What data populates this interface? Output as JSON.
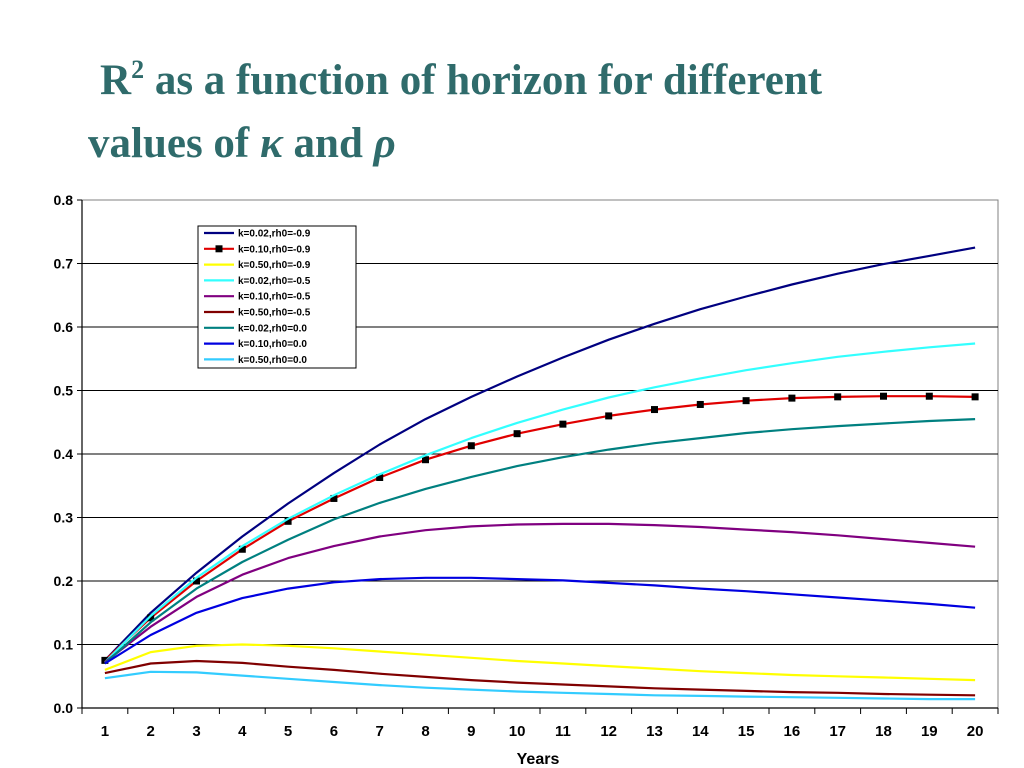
{
  "title": {
    "part1": "R",
    "sup": "2",
    "part2": " as a function of horizon for different",
    "part3": "values of ",
    "kappa": "κ",
    "part4": " and ",
    "rho": "ρ"
  },
  "chart_data": {
    "type": "line",
    "xlabel": "Years",
    "ylabel": "",
    "x": [
      1,
      2,
      3,
      4,
      5,
      6,
      7,
      8,
      9,
      10,
      11,
      12,
      13,
      14,
      15,
      16,
      17,
      18,
      19,
      20
    ],
    "xlim": [
      0.5,
      20.5
    ],
    "ylim": [
      0,
      0.8
    ],
    "yticks": [
      "0.0",
      "0.1",
      "0.2",
      "0.3",
      "0.4",
      "0.5",
      "0.6",
      "0.7",
      "0.8"
    ],
    "grid": true,
    "legend_position": "top-left",
    "series": [
      {
        "name": "k=0.02,rh0=-0.9",
        "color": "#000080",
        "marker": "none",
        "values": [
          0.075,
          0.15,
          0.213,
          0.27,
          0.322,
          0.37,
          0.415,
          0.455,
          0.49,
          0.522,
          0.552,
          0.58,
          0.605,
          0.628,
          0.648,
          0.667,
          0.684,
          0.699,
          0.712,
          0.725
        ]
      },
      {
        "name": "k=0.10,rh0=-0.9",
        "color": "#e00000",
        "marker": "square",
        "values": [
          0.075,
          0.142,
          0.2,
          0.25,
          0.294,
          0.33,
          0.363,
          0.391,
          0.413,
          0.432,
          0.447,
          0.46,
          0.47,
          0.478,
          0.484,
          0.488,
          0.49,
          0.491,
          0.491,
          0.49
        ]
      },
      {
        "name": "k=0.50,rh0=-0.9",
        "color": "#ffff00",
        "marker": "none",
        "values": [
          0.06,
          0.088,
          0.098,
          0.1,
          0.098,
          0.094,
          0.089,
          0.084,
          0.079,
          0.074,
          0.07,
          0.066,
          0.062,
          0.058,
          0.055,
          0.052,
          0.05,
          0.048,
          0.046,
          0.044
        ]
      },
      {
        "name": "k=0.02,rh0=-0.5",
        "color": "#33ffff",
        "marker": "none",
        "values": [
          0.072,
          0.145,
          0.205,
          0.255,
          0.298,
          0.335,
          0.368,
          0.398,
          0.425,
          0.449,
          0.47,
          0.489,
          0.505,
          0.519,
          0.532,
          0.543,
          0.553,
          0.561,
          0.568,
          0.574
        ]
      },
      {
        "name": "k=0.10,rh0=-0.5",
        "color": "#800080",
        "marker": "none",
        "values": [
          0.072,
          0.128,
          0.175,
          0.21,
          0.236,
          0.255,
          0.27,
          0.28,
          0.286,
          0.289,
          0.29,
          0.29,
          0.288,
          0.285,
          0.281,
          0.277,
          0.272,
          0.266,
          0.26,
          0.254
        ]
      },
      {
        "name": "k=0.50,rh0=-0.5",
        "color": "#800000",
        "marker": "none",
        "values": [
          0.055,
          0.07,
          0.074,
          0.071,
          0.065,
          0.06,
          0.054,
          0.049,
          0.044,
          0.04,
          0.037,
          0.034,
          0.031,
          0.029,
          0.027,
          0.025,
          0.024,
          0.022,
          0.021,
          0.02
        ]
      },
      {
        "name": "k=0.02,rh0=0.0",
        "color": "#008080",
        "marker": "none",
        "values": [
          0.07,
          0.135,
          0.188,
          0.23,
          0.265,
          0.297,
          0.323,
          0.345,
          0.364,
          0.381,
          0.395,
          0.407,
          0.417,
          0.425,
          0.433,
          0.439,
          0.444,
          0.448,
          0.452,
          0.455
        ]
      },
      {
        "name": "k=0.10,rh0=0.0",
        "color": "#0000e0",
        "marker": "none",
        "values": [
          0.07,
          0.115,
          0.15,
          0.173,
          0.188,
          0.198,
          0.203,
          0.205,
          0.205,
          0.203,
          0.201,
          0.197,
          0.193,
          0.188,
          0.184,
          0.179,
          0.174,
          0.169,
          0.164,
          0.158
        ]
      },
      {
        "name": "k=0.50,rh0=0.0",
        "color": "#33ccff",
        "marker": "none",
        "values": [
          0.047,
          0.057,
          0.056,
          0.051,
          0.046,
          0.041,
          0.036,
          0.032,
          0.029,
          0.026,
          0.024,
          0.022,
          0.02,
          0.019,
          0.018,
          0.017,
          0.016,
          0.015,
          0.014,
          0.014
        ]
      }
    ]
  }
}
